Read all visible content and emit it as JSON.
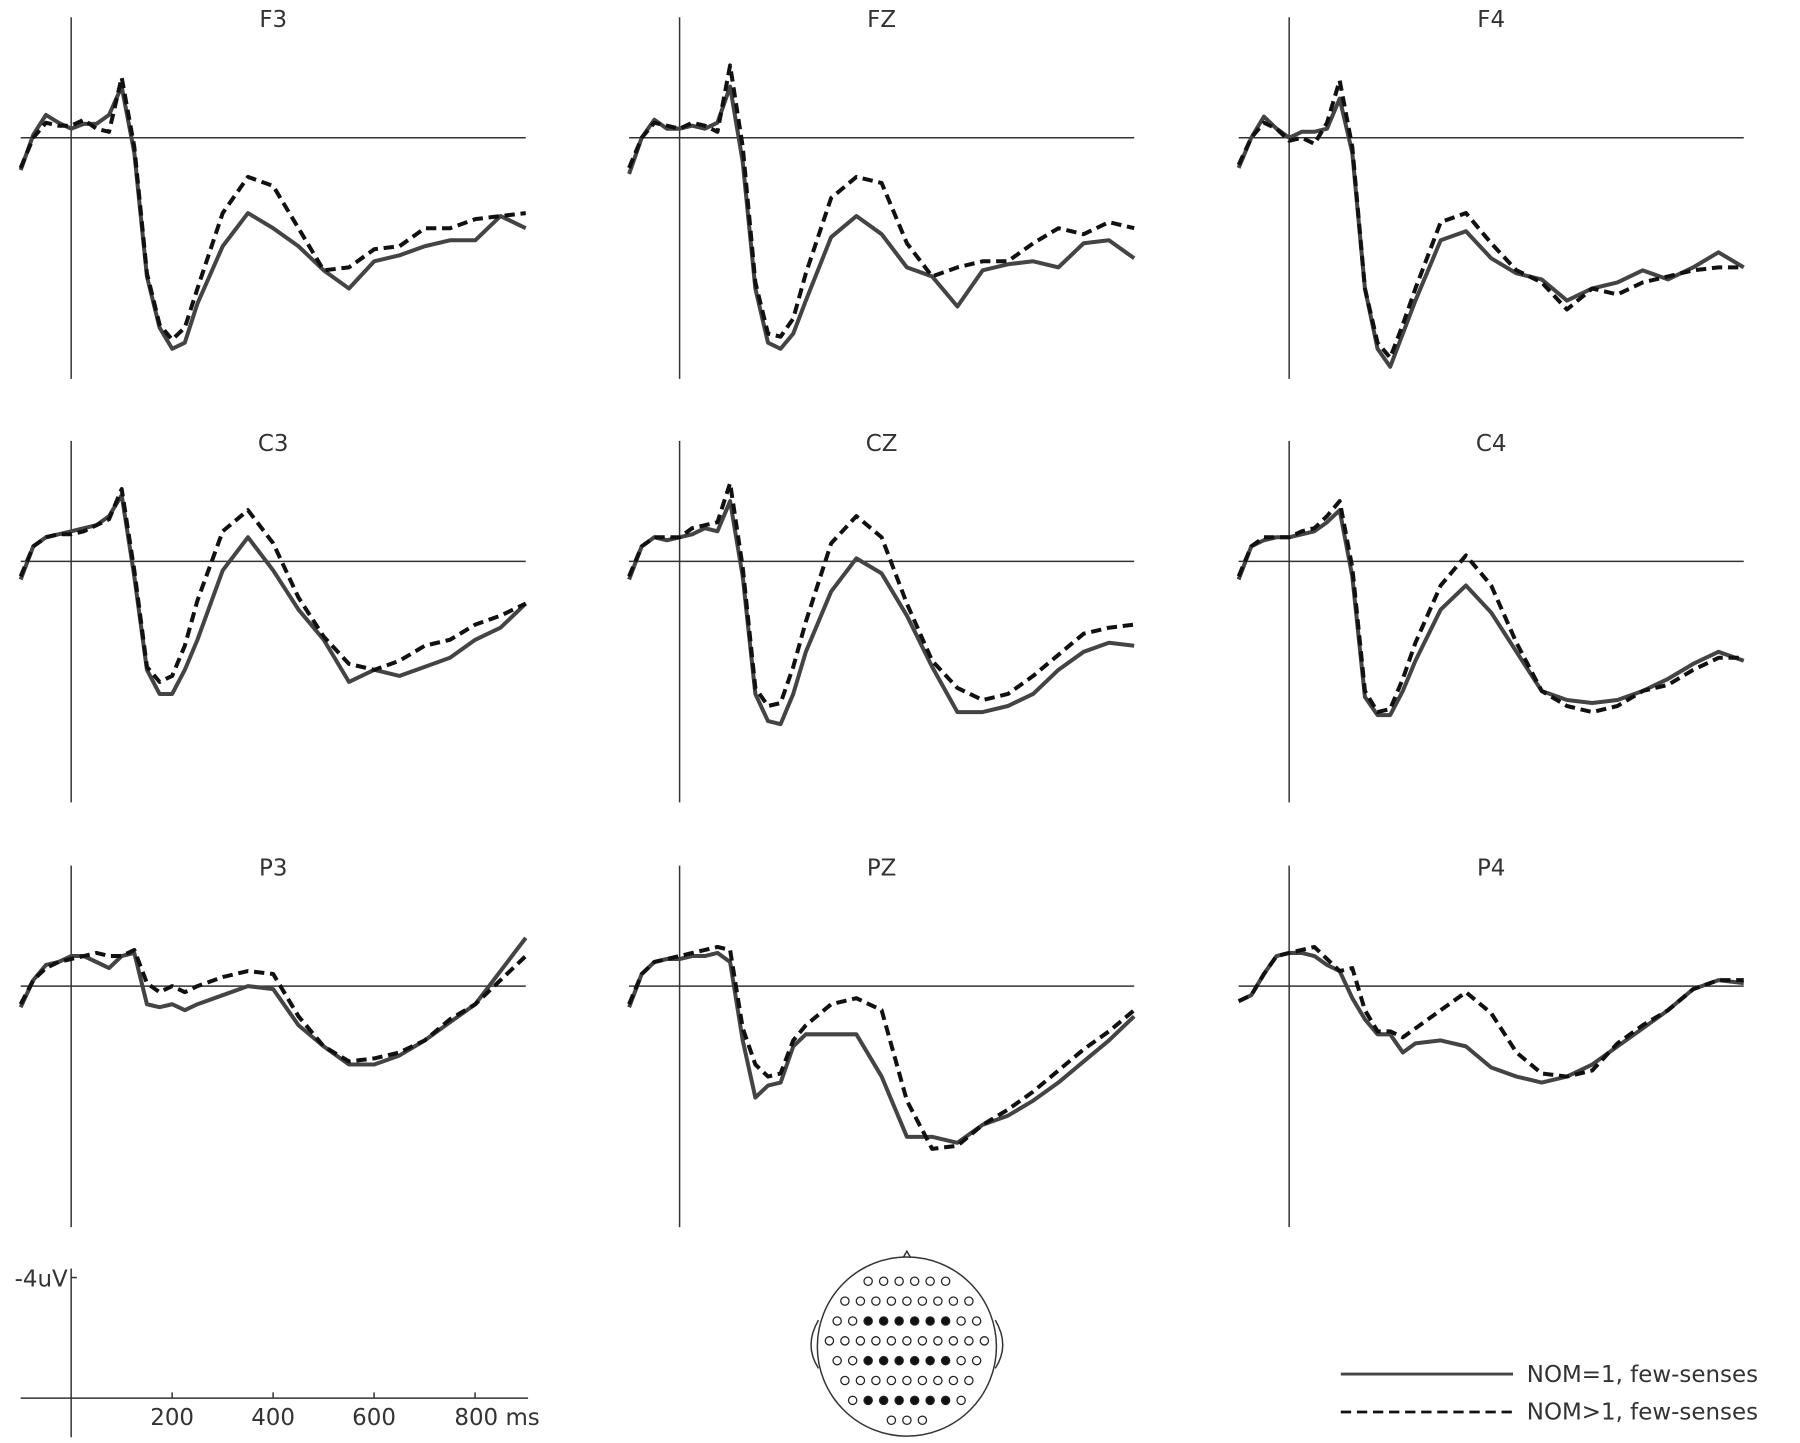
{
  "chart_data": [
    {
      "type": "line",
      "title": "F3",
      "x": [
        -100,
        -75,
        -50,
        -25,
        0,
        25,
        50,
        75,
        100,
        125,
        150,
        175,
        200,
        225,
        250,
        300,
        350,
        400,
        450,
        500,
        550,
        600,
        650,
        700,
        750,
        800,
        850,
        900
      ],
      "xlim": [
        -100,
        900
      ],
      "ylim": [
        -4,
        8
      ],
      "y_inverted": true,
      "series": [
        {
          "color": "#444444",
          "dash": false,
          "values": [
            1.07,
            -0.1,
            -0.76,
            -0.5,
            -0.3,
            -0.46,
            -0.46,
            -0.76,
            -1.7,
            0.5,
            4.6,
            6.3,
            7.0,
            6.8,
            5.5,
            3.6,
            2.5,
            3.0,
            3.6,
            4.4,
            5.0,
            4.1,
            3.9,
            3.6,
            3.4,
            3.4,
            2.6,
            3.0
          ]
        },
        {
          "color": "#111111",
          "dash": true,
          "values": [
            1.0,
            0,
            -0.5,
            -0.4,
            -0.4,
            -0.6,
            -0.3,
            -0.2,
            -2.0,
            0.3,
            4.5,
            6.2,
            6.7,
            6.3,
            5.0,
            2.5,
            1.3,
            1.6,
            3.0,
            4.4,
            4.3,
            3.7,
            3.6,
            3.0,
            3.0,
            2.7,
            2.6,
            2.5
          ]
        }
      ]
    },
    {
      "type": "line",
      "title": "FZ",
      "x": [
        -100,
        -75,
        -50,
        -25,
        0,
        25,
        50,
        75,
        100,
        125,
        150,
        175,
        200,
        225,
        250,
        300,
        350,
        400,
        450,
        500,
        550,
        600,
        650,
        700,
        750,
        800,
        850,
        900
      ],
      "xlim": [
        -100,
        900
      ],
      "ylim": [
        -4,
        8
      ],
      "y_inverted": true,
      "series": [
        {
          "color": "#444444",
          "dash": false,
          "values": [
            1.2,
            0,
            -0.6,
            -0.3,
            -0.3,
            -0.4,
            -0.3,
            -0.5,
            -1.7,
            0.8,
            5.0,
            6.8,
            7.0,
            6.5,
            5.4,
            3.3,
            2.6,
            3.2,
            4.3,
            4.6,
            5.6,
            4.4,
            4.2,
            4.1,
            4.3,
            3.5,
            3.4,
            4.0
          ]
        },
        {
          "color": "#111111",
          "dash": true,
          "values": [
            1.0,
            0,
            -0.5,
            -0.4,
            -0.3,
            -0.5,
            -0.4,
            -0.2,
            -2.4,
            0.3,
            4.8,
            6.5,
            6.6,
            6.0,
            4.5,
            2.0,
            1.3,
            1.5,
            3.5,
            4.6,
            4.3,
            4.1,
            4.1,
            3.5,
            3.0,
            3.2,
            2.8,
            3.0
          ]
        }
      ]
    },
    {
      "type": "line",
      "title": "F4",
      "x": [
        -100,
        -75,
        -50,
        -25,
        0,
        25,
        50,
        75,
        100,
        125,
        150,
        175,
        200,
        225,
        250,
        300,
        350,
        400,
        450,
        500,
        550,
        600,
        650,
        700,
        750,
        800,
        850,
        900
      ],
      "xlim": [
        -100,
        900
      ],
      "ylim": [
        -4,
        8
      ],
      "y_inverted": true,
      "series": [
        {
          "color": "#444444",
          "dash": false,
          "values": [
            1.0,
            0,
            -0.7,
            -0.3,
            0,
            -0.2,
            -0.2,
            -0.3,
            -1.3,
            0.5,
            5.0,
            7.0,
            7.6,
            6.5,
            5.4,
            3.4,
            3.1,
            4.0,
            4.5,
            4.7,
            5.4,
            5.0,
            4.8,
            4.4,
            4.7,
            4.3,
            3.8,
            4.3
          ]
        },
        {
          "color": "#111111",
          "dash": true,
          "values": [
            0.9,
            0,
            -0.5,
            -0.3,
            0.1,
            0,
            0.2,
            -0.5,
            -1.9,
            0.3,
            5.0,
            6.8,
            7.3,
            6.2,
            5.0,
            2.8,
            2.5,
            3.5,
            4.4,
            4.8,
            5.7,
            5.0,
            5.2,
            4.8,
            4.6,
            4.4,
            4.3,
            4.3
          ]
        }
      ]
    },
    {
      "type": "line",
      "title": "C3",
      "x": [
        -100,
        -75,
        -50,
        -25,
        0,
        25,
        50,
        75,
        100,
        125,
        150,
        175,
        200,
        225,
        250,
        300,
        350,
        400,
        450,
        500,
        550,
        600,
        650,
        700,
        750,
        800,
        850,
        900
      ],
      "xlim": [
        -100,
        900
      ],
      "ylim": [
        -4,
        8
      ],
      "y_inverted": true,
      "series": [
        {
          "color": "#444444",
          "dash": false,
          "values": [
            0.6,
            -0.5,
            -0.8,
            -0.9,
            -1.0,
            -1.1,
            -1.2,
            -1.5,
            -2.2,
            0.5,
            3.6,
            4.4,
            4.4,
            3.6,
            2.6,
            0.3,
            -0.8,
            0.3,
            1.6,
            2.6,
            4.0,
            3.6,
            3.8,
            3.5,
            3.2,
            2.6,
            2.2,
            1.4
          ]
        },
        {
          "color": "#111111",
          "dash": true,
          "values": [
            0.5,
            -0.5,
            -0.8,
            -0.9,
            -0.9,
            -1.0,
            -1.2,
            -1.4,
            -2.4,
            0.3,
            3.5,
            4.0,
            3.8,
            2.8,
            1.3,
            -1.0,
            -1.7,
            -0.6,
            1.2,
            2.5,
            3.4,
            3.6,
            3.3,
            2.8,
            2.6,
            2.1,
            1.8,
            1.4
          ]
        }
      ]
    },
    {
      "type": "line",
      "title": "CZ",
      "x": [
        -100,
        -75,
        -50,
        -25,
        0,
        25,
        50,
        75,
        100,
        125,
        150,
        175,
        200,
        225,
        250,
        300,
        350,
        400,
        450,
        500,
        550,
        600,
        650,
        700,
        750,
        800,
        850,
        900
      ],
      "xlim": [
        -100,
        900
      ],
      "ylim": [
        -4,
        8
      ],
      "y_inverted": true,
      "series": [
        {
          "color": "#444444",
          "dash": false,
          "values": [
            0.6,
            -0.5,
            -0.8,
            -0.7,
            -0.8,
            -0.9,
            -1.1,
            -1.0,
            -2.0,
            0.5,
            4.4,
            5.3,
            5.4,
            4.4,
            3.0,
            1.0,
            -0.1,
            0.4,
            1.8,
            3.5,
            5.0,
            5.0,
            4.8,
            4.4,
            3.6,
            3.0,
            2.7,
            2.8
          ]
        },
        {
          "color": "#111111",
          "dash": true,
          "values": [
            0.5,
            -0.5,
            -0.8,
            -0.8,
            -0.8,
            -1.1,
            -1.2,
            -1.3,
            -2.6,
            0.2,
            4.2,
            4.8,
            4.7,
            3.5,
            2.0,
            -0.6,
            -1.5,
            -0.8,
            1.4,
            3.3,
            4.2,
            4.6,
            4.4,
            3.8,
            3.1,
            2.4,
            2.2,
            2.1
          ]
        }
      ]
    },
    {
      "type": "line",
      "title": "C4",
      "x": [
        -100,
        -75,
        -50,
        -25,
        0,
        25,
        50,
        75,
        100,
        125,
        150,
        175,
        200,
        225,
        250,
        300,
        350,
        400,
        450,
        500,
        550,
        600,
        650,
        700,
        750,
        800,
        850,
        900
      ],
      "xlim": [
        -100,
        900
      ],
      "ylim": [
        -4,
        8
      ],
      "y_inverted": true,
      "series": [
        {
          "color": "#444444",
          "dash": false,
          "values": [
            0.6,
            -0.5,
            -0.7,
            -0.8,
            -0.8,
            -0.9,
            -1.0,
            -1.3,
            -1.7,
            0.5,
            4.5,
            5.1,
            5.1,
            4.3,
            3.3,
            1.6,
            0.8,
            1.7,
            3.0,
            4.3,
            4.6,
            4.7,
            4.6,
            4.3,
            3.9,
            3.4,
            3.0,
            3.3
          ]
        },
        {
          "color": "#111111",
          "dash": true,
          "values": [
            0.5,
            -0.5,
            -0.8,
            -0.8,
            -0.8,
            -1.0,
            -1.1,
            -1.5,
            -2.0,
            0.2,
            4.3,
            5.0,
            4.9,
            3.9,
            2.7,
            0.8,
            -0.2,
            0.8,
            2.7,
            4.3,
            4.8,
            5.0,
            4.8,
            4.3,
            4.1,
            3.6,
            3.2,
            3.2
          ]
        }
      ]
    },
    {
      "type": "line",
      "title": "P3",
      "x": [
        -100,
        -75,
        -50,
        -25,
        0,
        25,
        50,
        75,
        100,
        125,
        150,
        175,
        200,
        225,
        250,
        300,
        350,
        400,
        450,
        500,
        550,
        600,
        650,
        700,
        750,
        800,
        850,
        900
      ],
      "xlim": [
        -100,
        900
      ],
      "ylim": [
        -4,
        8
      ],
      "y_inverted": true,
      "series": [
        {
          "color": "#444444",
          "dash": false,
          "values": [
            0.7,
            -0.2,
            -0.7,
            -0.8,
            -1.0,
            -1.0,
            -0.8,
            -0.6,
            -1.0,
            -1.1,
            0.6,
            0.7,
            0.6,
            0.8,
            0.6,
            0.3,
            0.0,
            0.1,
            1.3,
            2.0,
            2.6,
            2.6,
            2.3,
            1.8,
            1.2,
            0.6,
            -0.5,
            -1.6
          ]
        },
        {
          "color": "#111111",
          "dash": true,
          "values": [
            0.6,
            -0.2,
            -0.6,
            -0.8,
            -0.9,
            -1.0,
            -1.1,
            -1.0,
            -1.0,
            -1.2,
            -0.1,
            0.2,
            0.0,
            0.2,
            0.0,
            -0.3,
            -0.5,
            -0.4,
            1.0,
            2.0,
            2.5,
            2.4,
            2.2,
            1.8,
            1.1,
            0.6,
            -0.2,
            -1.0
          ]
        }
      ]
    },
    {
      "type": "line",
      "title": "PZ",
      "x": [
        -100,
        -75,
        -50,
        -25,
        0,
        25,
        50,
        75,
        100,
        125,
        150,
        175,
        200,
        225,
        250,
        300,
        350,
        400,
        450,
        500,
        550,
        600,
        650,
        700,
        750,
        800,
        850,
        900
      ],
      "xlim": [
        -100,
        900
      ],
      "ylim": [
        -4,
        8
      ],
      "y_inverted": true,
      "series": [
        {
          "color": "#444444",
          "dash": false,
          "values": [
            0.7,
            -0.4,
            -0.8,
            -0.9,
            -0.9,
            -1.0,
            -1.0,
            -1.1,
            -0.8,
            1.8,
            3.7,
            3.3,
            3.2,
            2.0,
            1.6,
            1.6,
            1.6,
            3.0,
            5.0,
            5.0,
            5.2,
            4.6,
            4.3,
            3.8,
            3.2,
            2.5,
            1.8,
            1.0
          ]
        },
        {
          "color": "#111111",
          "dash": true,
          "values": [
            0.6,
            -0.4,
            -0.8,
            -0.9,
            -1.0,
            -1.1,
            -1.2,
            -1.3,
            -1.2,
            1.4,
            2.6,
            3.0,
            2.9,
            1.8,
            1.3,
            0.6,
            0.4,
            0.8,
            3.8,
            5.4,
            5.3,
            4.6,
            4.1,
            3.5,
            2.8,
            2.1,
            1.5,
            0.8
          ]
        }
      ]
    },
    {
      "type": "line",
      "title": "P4",
      "x": [
        -100,
        -75,
        -50,
        -25,
        0,
        25,
        50,
        75,
        100,
        125,
        150,
        175,
        200,
        225,
        250,
        300,
        350,
        400,
        450,
        500,
        550,
        600,
        650,
        700,
        750,
        800,
        850,
        900
      ],
      "xlim": [
        -100,
        900
      ],
      "ylim": [
        -4,
        8
      ],
      "y_inverted": true,
      "series": [
        {
          "color": "#444444",
          "dash": false,
          "values": [
            0.5,
            0.3,
            -0.4,
            -1.0,
            -1.1,
            -1.1,
            -1.0,
            -0.7,
            -0.5,
            0.4,
            1.1,
            1.6,
            1.6,
            2.2,
            1.9,
            1.8,
            2.0,
            2.7,
            3.0,
            3.2,
            3.0,
            2.6,
            2.0,
            1.4,
            0.8,
            0.1,
            -0.2,
            -0.1
          ]
        },
        {
          "color": "#111111",
          "dash": true,
          "values": [
            0.5,
            0.3,
            -0.4,
            -1.0,
            -1.1,
            -1.2,
            -1.3,
            -0.9,
            -0.5,
            -0.6,
            0.8,
            1.5,
            1.5,
            1.7,
            1.4,
            0.8,
            0.2,
            0.9,
            2.2,
            2.9,
            3.0,
            2.8,
            1.9,
            1.3,
            0.8,
            0.1,
            -0.2,
            -0.2
          ]
        }
      ]
    },
    {
      "type": "axes",
      "xlim": [
        -100,
        905
      ],
      "ylim": [
        -4.3,
        1.3
      ],
      "y_inverted": true,
      "xticks": [
        200,
        400,
        600,
        {
          "value": 800,
          "label": "800 ms"
        }
      ],
      "yticks": [
        {
          "value": -4,
          "label": "-4uV"
        }
      ]
    }
  ],
  "legend": [
    "NOM=1, few-senses",
    "NOM>1, few-senses"
  ]
}
